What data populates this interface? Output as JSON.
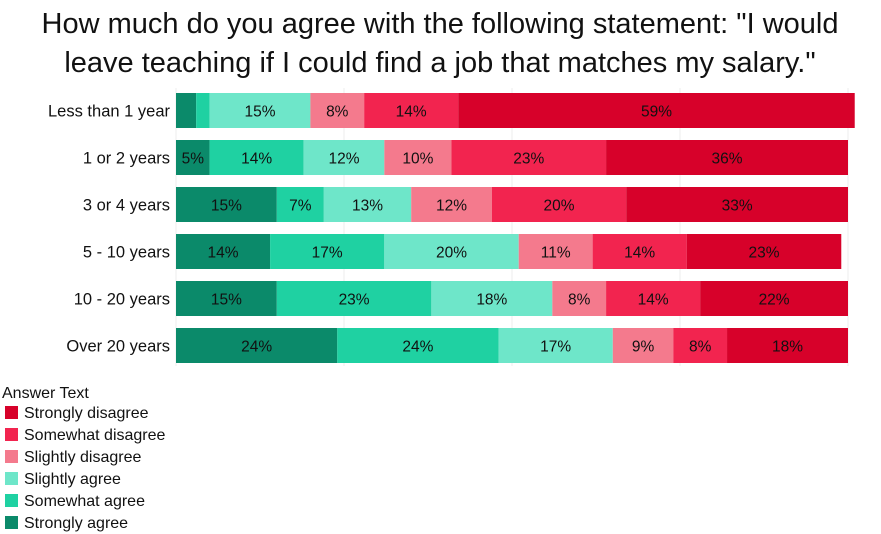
{
  "chart_data": {
    "type": "bar",
    "orientation": "horizontal",
    "stacked": true,
    "title": "How much do you agree with the following statement: \"I would leave teaching if I could find a job that matches my salary.\"",
    "title_lines": [
      "How much do you agree with the following statement: \"I would",
      "leave teaching if I could find a job that matches my salary.\""
    ],
    "categories": [
      "Less than 1 year",
      "1 or 2 years",
      "3 or 4 years",
      "5 - 10 years",
      "10 - 20 years",
      "Over 20 years"
    ],
    "xlim": [
      0,
      100
    ],
    "unit": "%",
    "legend": {
      "title": "Answer Text",
      "position": "bottom-left"
    },
    "series": [
      {
        "name": "Strongly agree",
        "color": "#0b8a6a",
        "values": [
          3,
          5,
          15,
          14,
          15,
          24
        ],
        "labels": [
          "",
          "5%",
          "15%",
          "14%",
          "15%",
          "24%"
        ]
      },
      {
        "name": "Somewhat agree",
        "color": "#1fd1a2",
        "values": [
          2,
          14,
          7,
          17,
          23,
          24
        ],
        "labels": [
          "",
          "14%",
          "7%",
          "17%",
          "23%",
          "24%"
        ]
      },
      {
        "name": "Slightly agree",
        "color": "#6ee6c9",
        "values": [
          15,
          12,
          13,
          20,
          18,
          17
        ],
        "labels": [
          "15%",
          "12%",
          "13%",
          "20%",
          "18%",
          "17%"
        ]
      },
      {
        "name": "Slightly disagree",
        "color": "#f47a8d",
        "values": [
          8,
          10,
          12,
          11,
          8,
          9
        ],
        "labels": [
          "8%",
          "10%",
          "12%",
          "11%",
          "8%",
          "9%"
        ]
      },
      {
        "name": "Somewhat disagree",
        "color": "#f2244f",
        "values": [
          14,
          23,
          20,
          14,
          14,
          8
        ],
        "labels": [
          "14%",
          "23%",
          "20%",
          "14%",
          "14%",
          "8%"
        ]
      },
      {
        "name": "Strongly disagree",
        "color": "#d7012a",
        "values": [
          59,
          36,
          33,
          23,
          22,
          18
        ],
        "labels": [
          "59%",
          "36%",
          "33%",
          "23%",
          "22%",
          "18%"
        ]
      }
    ],
    "legend_order": [
      "Strongly disagree",
      "Somewhat disagree",
      "Slightly disagree",
      "Slightly agree",
      "Somewhat agree",
      "Strongly agree"
    ],
    "grid": true
  }
}
